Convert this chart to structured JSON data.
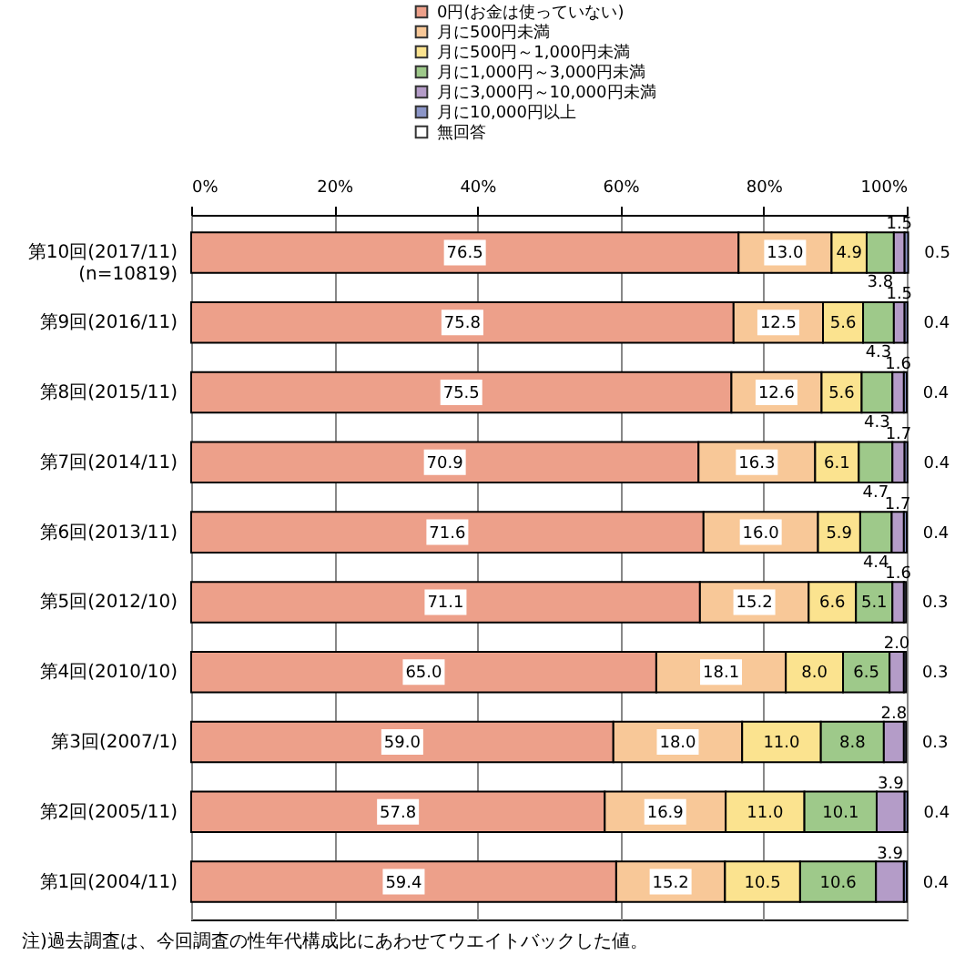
{
  "chart_data": {
    "type": "bar",
    "orientation": "horizontal",
    "stacked": true,
    "legend": "top",
    "grid": "x",
    "categories": [
      "第10回(2017/11)\n(n=10819)",
      "第9回(2016/11)",
      "第8回(2015/11)",
      "第7回(2014/11)",
      "第6回(2013/11)",
      "第5回(2012/10)",
      "第4回(2010/10)",
      "第3回(2007/1)",
      "第2回(2005/11)",
      "第1回(2004/11)"
    ],
    "xlim": [
      0,
      100
    ],
    "xticks": [
      {
        "value": 0,
        "label": "0%"
      },
      {
        "value": 20,
        "label": "20%"
      },
      {
        "value": 40,
        "label": "40%"
      },
      {
        "value": 60,
        "label": "60%"
      },
      {
        "value": 80,
        "label": "80%"
      },
      {
        "value": 100,
        "label": "100%"
      }
    ],
    "series": [
      {
        "name": "0円(お金は使っていない)",
        "color": "#eda08a",
        "values": [
          76.5,
          75.8,
          75.5,
          70.9,
          71.6,
          71.1,
          65.0,
          59.0,
          57.8,
          59.4
        ],
        "value_labels": [
          "76.5",
          "75.8",
          "75.5",
          "70.9",
          "71.6",
          "71.1",
          "65.0",
          "59.0",
          "57.8",
          "59.4"
        ]
      },
      {
        "name": "月に500円未満",
        "color": "#f8c898",
        "values": [
          13.0,
          12.5,
          12.6,
          16.3,
          16.0,
          15.2,
          18.1,
          18.0,
          16.9,
          15.2
        ],
        "value_labels": [
          "13.0",
          "12.5",
          "12.6",
          "16.3",
          "16.0",
          "15.2",
          "18.1",
          "18.0",
          "16.9",
          "15.2"
        ]
      },
      {
        "name": "月に500円～1,000円未満",
        "color": "#fbe38f",
        "values": [
          4.9,
          5.6,
          5.6,
          6.1,
          5.9,
          6.6,
          8.0,
          11.0,
          11.0,
          10.5
        ],
        "value_labels": [
          "4.9",
          "5.6",
          "5.6",
          "6.1",
          "5.9",
          "6.6",
          "8.0",
          "11.0",
          "11.0",
          "10.5"
        ]
      },
      {
        "name": "月に1,000円～3,000円未満",
        "color": "#9ec98a",
        "values": [
          3.8,
          4.3,
          4.3,
          4.7,
          4.4,
          5.1,
          6.5,
          8.8,
          10.1,
          10.6
        ],
        "value_labels": [
          "3.8",
          "4.3",
          "4.3",
          "4.7",
          "4.4",
          "5.1",
          "6.5",
          "8.8",
          "10.1",
          "10.6"
        ]
      },
      {
        "name": "月に3,000円～10,000円未満",
        "color": "#b49cc8",
        "values": [
          1.5,
          1.5,
          1.6,
          1.7,
          1.7,
          1.6,
          2.0,
          2.8,
          3.9,
          3.9
        ],
        "value_labels": [
          "1.5",
          "1.5",
          "1.6",
          "1.7",
          "1.7",
          "1.6",
          "2.0",
          "2.8",
          "3.9",
          "3.9"
        ]
      },
      {
        "name": "月に10,000円以上",
        "color": "#8c96c8",
        "values": [
          0.5,
          0.4,
          0.4,
          0.4,
          0.4,
          0.3,
          0.3,
          0.3,
          0.4,
          0.4
        ],
        "value_labels": [
          "0.5",
          "0.4",
          "0.4",
          "0.4",
          "0.4",
          "0.3",
          "0.3",
          "0.3",
          "0.4",
          "0.4"
        ]
      },
      {
        "name": "無回答",
        "color": "#ffffff",
        "values": [
          null,
          null,
          null,
          null,
          null,
          null,
          null,
          null,
          null,
          null
        ]
      }
    ],
    "annotations": [
      "注)過去調査は、今回調査の性年代構成比にあわせてウエイトバックした値。"
    ]
  }
}
